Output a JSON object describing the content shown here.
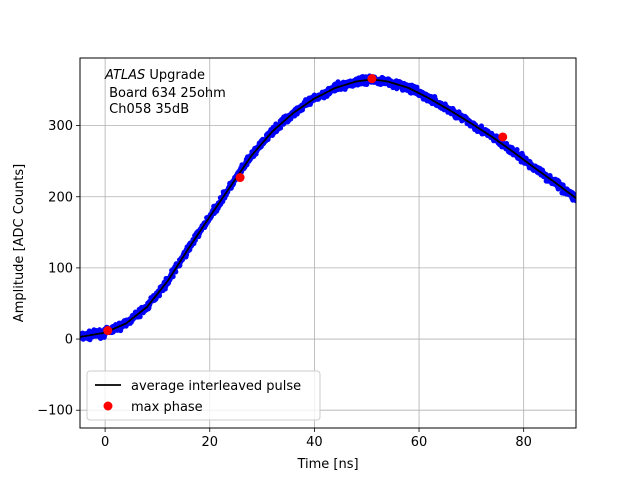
{
  "chart_data": {
    "type": "scatter",
    "title": "",
    "xlabel": "Time [ns]",
    "ylabel": "Amplitude [ADC Counts]",
    "xlim": [
      -4.8,
      90
    ],
    "ylim": [
      -125,
      395
    ],
    "xticks": [
      0,
      20,
      40,
      60,
      80
    ],
    "yticks": [
      -100,
      0,
      100,
      200,
      300
    ],
    "grid": true,
    "annotation": {
      "italic": "ATLAS",
      "line1_rest": " Upgrade",
      "line2": " Board 634 25ohm",
      "line3": " Ch058 35dB"
    },
    "legend": {
      "position": "lower-left",
      "entries": [
        {
          "label": "average interleaved pulse",
          "marker": "line",
          "color": "#000000"
        },
        {
          "label": "max phase",
          "marker": "circle",
          "color": "#ff0000"
        }
      ]
    },
    "average_pulse": {
      "name": "average interleaved pulse",
      "color": "#000000",
      "x": [
        -4.8,
        0,
        4,
        8,
        12,
        16,
        20,
        24,
        28,
        32,
        36,
        40,
        44,
        48,
        51,
        54,
        58,
        62,
        66,
        70,
        74,
        78,
        82,
        86,
        90
      ],
      "y": [
        3,
        9,
        22,
        45,
        82,
        128,
        172,
        215,
        258,
        292,
        318,
        338,
        353,
        362,
        365,
        362,
        353,
        338,
        321,
        303,
        284,
        263,
        241,
        220,
        198
      ]
    },
    "samples": {
      "color": "#0000ff",
      "note": "dense scatter of samples around the average pulse, spread about ±6 ADC counts"
    },
    "max_phase": {
      "name": "max phase",
      "color": "#ff0000",
      "x": [
        0.5,
        25.8,
        51.0,
        76.0
      ],
      "y": [
        12,
        227,
        366,
        284
      ]
    }
  }
}
